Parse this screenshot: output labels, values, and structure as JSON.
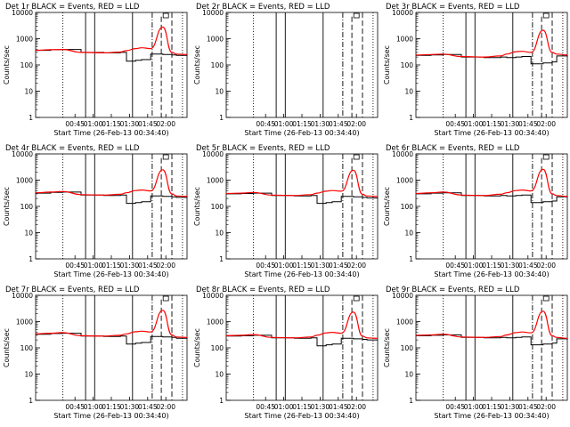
{
  "colors": {
    "events": "#000000",
    "lld": "#ff0000",
    "background": "#ffffff"
  },
  "chart_data": [
    {
      "type": "line",
      "title": "Det 1r BLACK = Events, RED = LLD",
      "xlabel": "Start Time (26-Feb-13 00:34:40)",
      "ylabel": "Counts/sec",
      "y_scale": "log",
      "ylim": [
        1,
        10000
      ],
      "x_tick_labels": [
        "00:45",
        "01:00",
        "01:15",
        "01:30",
        "01:45",
        "02:00"
      ],
      "y_tick_labels": [
        "1",
        "10",
        "100",
        "1000",
        "10000"
      ],
      "series": [
        {
          "name": "BLACK = Events",
          "values": [
            360,
            380,
            390,
            300,
            290,
            300,
            140,
            150,
            160,
            260,
            250,
            240,
            230,
            220
          ]
        },
        {
          "name": "RED = LLD",
          "values": [
            360,
            380,
            390,
            300,
            290,
            310,
            350,
            420,
            450,
            420,
            2800,
            300,
            260,
            250
          ]
        }
      ]
    },
    {
      "type": "line",
      "title": "Det 2r BLACK = Events, RED = LLD",
      "xlabel": "Start Time (26-Feb-13 00:34:40)",
      "ylabel": "Counts/sec",
      "y_scale": "log",
      "ylim": [
        1,
        10000
      ],
      "x_tick_labels": [
        "00:45",
        "01:00",
        "01:15",
        "01:30",
        "01:45",
        "02:00"
      ],
      "y_tick_labels": [
        "1",
        "10",
        "100",
        "1000",
        "10000"
      ],
      "series": []
    },
    {
      "type": "line",
      "title": "Det 3r BLACK = Events, RED = LLD",
      "xlabel": "Start Time (26-Feb-13 00:34:40)",
      "ylabel": "Counts/sec",
      "y_scale": "log",
      "ylim": [
        1,
        10000
      ],
      "x_tick_labels": [
        "00:45",
        "01:00",
        "01:15",
        "01:30",
        "01:45",
        "02:00"
      ],
      "y_tick_labels": [
        "1",
        "10",
        "100",
        "1000",
        "10000"
      ],
      "series": [
        {
          "name": "BLACK = Events",
          "values": [
            230,
            240,
            250,
            200,
            190,
            200,
            190,
            200,
            210,
            110,
            120,
            130,
            220,
            200
          ]
        },
        {
          "name": "RED = LLD",
          "values": [
            240,
            250,
            260,
            210,
            200,
            220,
            260,
            320,
            330,
            300,
            2100,
            300,
            260,
            240
          ]
        }
      ]
    },
    {
      "type": "line",
      "title": "Det 4r BLACK = Events, RED = LLD",
      "xlabel": "Start Time (26-Feb-13 00:34:40)",
      "ylabel": "Counts/sec",
      "y_scale": "log",
      "ylim": [
        1,
        10000
      ],
      "x_tick_labels": [
        "00:45",
        "01:00",
        "01:15",
        "01:30",
        "01:45",
        "02:00"
      ],
      "y_tick_labels": [
        "1",
        "10",
        "100",
        "1000",
        "10000"
      ],
      "series": [
        {
          "name": "BLACK = Events",
          "values": [
            320,
            340,
            350,
            270,
            260,
            270,
            130,
            140,
            150,
            250,
            240,
            230,
            220,
            210
          ]
        },
        {
          "name": "RED = LLD",
          "values": [
            330,
            350,
            370,
            280,
            270,
            290,
            330,
            400,
            420,
            390,
            2500,
            300,
            250,
            240
          ]
        }
      ]
    },
    {
      "type": "line",
      "title": "Det 5r BLACK = Events, RED = LLD",
      "xlabel": "Start Time (26-Feb-13 00:34:40)",
      "ylabel": "Counts/sec",
      "y_scale": "log",
      "ylim": [
        1,
        10000
      ],
      "x_tick_labels": [
        "00:45",
        "01:00",
        "01:15",
        "01:30",
        "01:45",
        "02:00"
      ],
      "y_tick_labels": [
        "1",
        "10",
        "100",
        "1000",
        "10000"
      ],
      "series": [
        {
          "name": "BLACK = Events",
          "values": [
            300,
            310,
            320,
            260,
            250,
            260,
            130,
            140,
            150,
            240,
            230,
            220,
            210,
            200
          ]
        },
        {
          "name": "RED = LLD",
          "values": [
            310,
            320,
            340,
            270,
            260,
            280,
            320,
            380,
            400,
            380,
            2400,
            290,
            250,
            240
          ]
        }
      ]
    },
    {
      "type": "line",
      "title": "Det 6r BLACK = Events, RED = LLD",
      "xlabel": "Start Time (26-Feb-13 00:34:40)",
      "ylabel": "Counts/sec",
      "y_scale": "log",
      "ylim": [
        1,
        10000
      ],
      "x_tick_labels": [
        "00:45",
        "01:00",
        "01:15",
        "01:30",
        "01:45",
        "02:00"
      ],
      "y_tick_labels": [
        "1",
        "10",
        "100",
        "1000",
        "10000"
      ],
      "series": [
        {
          "name": "BLACK = Events",
          "values": [
            300,
            320,
            330,
            260,
            250,
            260,
            250,
            260,
            270,
            140,
            150,
            160,
            230,
            210
          ]
        },
        {
          "name": "RED = LLD",
          "values": [
            310,
            330,
            350,
            270,
            260,
            290,
            330,
            400,
            420,
            390,
            2600,
            300,
            260,
            240
          ]
        }
      ]
    },
    {
      "type": "line",
      "title": "Det 7r BLACK = Events, RED = LLD",
      "xlabel": "Start Time (26-Feb-13 00:34:40)",
      "ylabel": "Counts/sec",
      "y_scale": "log",
      "ylim": [
        1,
        10000
      ],
      "x_tick_labels": [
        "00:45",
        "01:00",
        "01:15",
        "01:30",
        "01:45",
        "02:00"
      ],
      "y_tick_labels": [
        "1",
        "10",
        "100",
        "1000",
        "10000"
      ],
      "series": [
        {
          "name": "BLACK = Events",
          "values": [
            330,
            350,
            360,
            280,
            270,
            280,
            140,
            150,
            160,
            270,
            260,
            250,
            230,
            220
          ]
        },
        {
          "name": "RED = LLD",
          "values": [
            340,
            360,
            380,
            290,
            280,
            300,
            340,
            410,
            430,
            400,
            2700,
            310,
            260,
            250
          ]
        }
      ]
    },
    {
      "type": "line",
      "title": "Det 8r BLACK = Events, RED = LLD",
      "xlabel": "Start Time (26-Feb-13 00:34:40)",
      "ylabel": "Counts/sec",
      "y_scale": "log",
      "ylim": [
        1,
        10000
      ],
      "x_tick_labels": [
        "00:45",
        "01:00",
        "01:15",
        "01:30",
        "01:45",
        "02:00"
      ],
      "y_tick_labels": [
        "1",
        "10",
        "100",
        "1000",
        "10000"
      ],
      "series": [
        {
          "name": "BLACK = Events",
          "values": [
            280,
            290,
            300,
            240,
            230,
            240,
            120,
            130,
            140,
            230,
            220,
            210,
            200,
            190
          ]
        },
        {
          "name": "RED = LLD",
          "values": [
            290,
            300,
            320,
            250,
            240,
            260,
            300,
            370,
            390,
            360,
            2300,
            280,
            240,
            230
          ]
        }
      ]
    },
    {
      "type": "line",
      "title": "Det 9r BLACK = Events, RED = LLD",
      "xlabel": "Start Time (26-Feb-13 00:34:40)",
      "ylabel": "Counts/sec",
      "y_scale": "log",
      "ylim": [
        1,
        10000
      ],
      "x_tick_labels": [
        "00:45",
        "01:00",
        "01:15",
        "01:30",
        "01:45",
        "02:00"
      ],
      "y_tick_labels": [
        "1",
        "10",
        "100",
        "1000",
        "10000"
      ],
      "series": [
        {
          "name": "BLACK = Events",
          "values": [
            290,
            300,
            310,
            250,
            240,
            250,
            240,
            250,
            260,
            130,
            140,
            150,
            220,
            200
          ]
        },
        {
          "name": "RED = LLD",
          "values": [
            300,
            310,
            330,
            260,
            250,
            270,
            310,
            380,
            400,
            370,
            2500,
            290,
            250,
            230
          ]
        }
      ]
    }
  ]
}
